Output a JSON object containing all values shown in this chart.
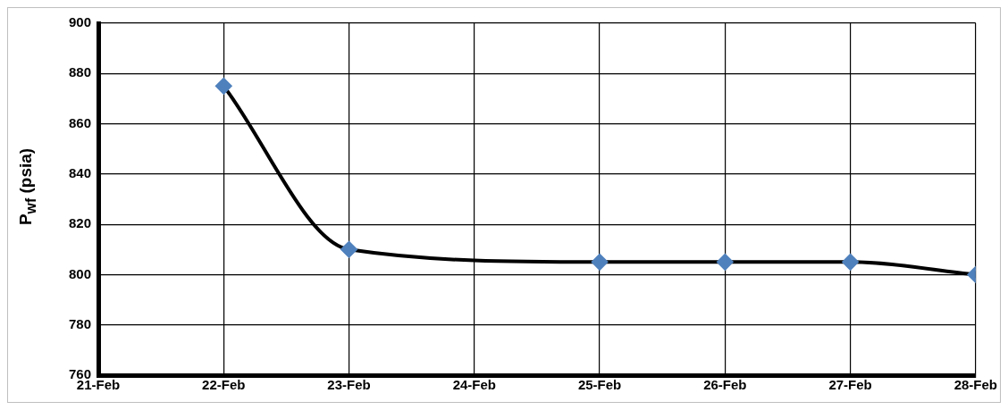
{
  "chart_data": {
    "type": "line",
    "ylabel": "P$_{wf}$ (psia)",
    "x": [
      "--02-22",
      "--02-23",
      "--02-25",
      "--02-26",
      "--02-27",
      "--02-28"
    ],
    "series": [
      {
        "color": "#4f81bd",
        "values": [
          875,
          810,
          805,
          805,
          805,
          800
        ]
      }
    ],
    "xlim": [
      "--02-21",
      "--02-28"
    ],
    "xticks": [
      {
        "value": "--02-21",
        "label": "21-Feb"
      },
      {
        "value": "--02-22",
        "label": "22-Feb"
      },
      {
        "value": "--02-23",
        "label": "23-Feb"
      },
      {
        "value": "--02-24",
        "label": "24-Feb"
      },
      {
        "value": "--02-25",
        "label": "25-Feb"
      },
      {
        "value": "--02-26",
        "label": "26-Feb"
      },
      {
        "value": "--02-27",
        "label": "27-Feb"
      },
      {
        "value": "--02-28",
        "label": "28-Feb"
      }
    ],
    "ylim": [
      760,
      900
    ],
    "yticks": [
      760,
      780,
      800,
      820,
      840,
      860,
      880,
      900
    ],
    "grid": true,
    "legend": false,
    "marker": "diamond",
    "line_style": "solid"
  }
}
